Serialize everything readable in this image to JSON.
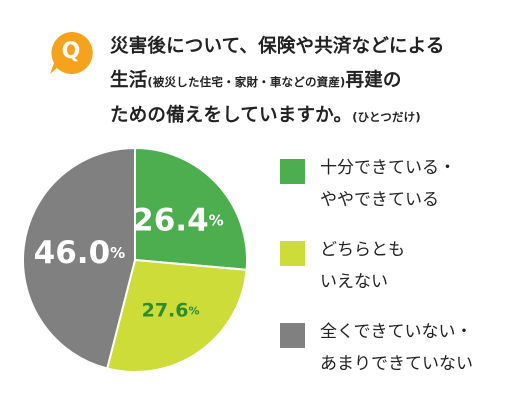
{
  "badge": {
    "letter": "Q",
    "color": "#f5a31c"
  },
  "question": {
    "line1": "災害後について、保険や共済などによる",
    "line2_main": "生活",
    "line2_small": "(被災した住宅・家財・車などの資産)",
    "line2_tail": "再建の",
    "line3_main": "ための備えをしていますか。",
    "line3_small": "(ひとつだけ)"
  },
  "chart_data": {
    "type": "pie",
    "title": "",
    "start": "top, clockwise",
    "slices": [
      {
        "value": 26.4,
        "label_number": "26.4",
        "label_unit": "%",
        "color": "#4cae4f",
        "label_color": "#ffffff",
        "legend": [
          "十分できている・",
          "ややできている"
        ]
      },
      {
        "value": 27.6,
        "label_number": "27.6",
        "label_unit": "%",
        "color": "#cddc39",
        "label_color": "#2e8b2e",
        "legend": [
          "どちらとも",
          "いえない"
        ]
      },
      {
        "value": 46.0,
        "label_number": "46.0",
        "label_unit": "%",
        "color": "#808080",
        "label_color": "#ffffff",
        "legend": [
          "全くできていない・",
          "あまりできていない"
        ]
      }
    ]
  }
}
